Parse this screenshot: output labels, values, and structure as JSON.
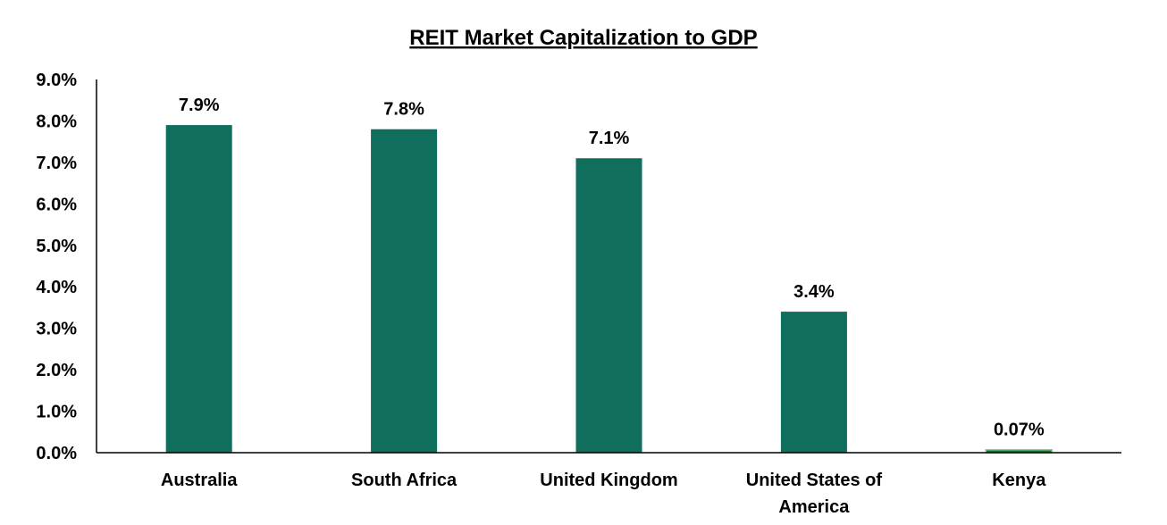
{
  "chart_data": {
    "type": "bar",
    "title": "REIT Market Capitalization to GDP",
    "categories": [
      [
        "Australia"
      ],
      [
        "South Africa"
      ],
      [
        "United Kingdom"
      ],
      [
        "United States of",
        "America"
      ],
      [
        "Kenya"
      ]
    ],
    "values": [
      7.9,
      7.8,
      7.1,
      3.4,
      0.07
    ],
    "data_labels": [
      "7.9%",
      "7.8%",
      "7.1%",
      "3.4%",
      "0.07%"
    ],
    "y_ticks": [
      "0.0%",
      "1.0%",
      "2.0%",
      "3.0%",
      "4.0%",
      "5.0%",
      "6.0%",
      "7.0%",
      "8.0%",
      "9.0%"
    ],
    "ylim": [
      0,
      9
    ],
    "xlabel": "",
    "ylabel": "",
    "grid": false,
    "legend": "none",
    "colors": {
      "bar": "#0f6e5c",
      "bar_highlight": "#0f6e5c",
      "highlight_outline": "#7ed957",
      "axis": "#000000"
    },
    "highlight_index": 4
  }
}
